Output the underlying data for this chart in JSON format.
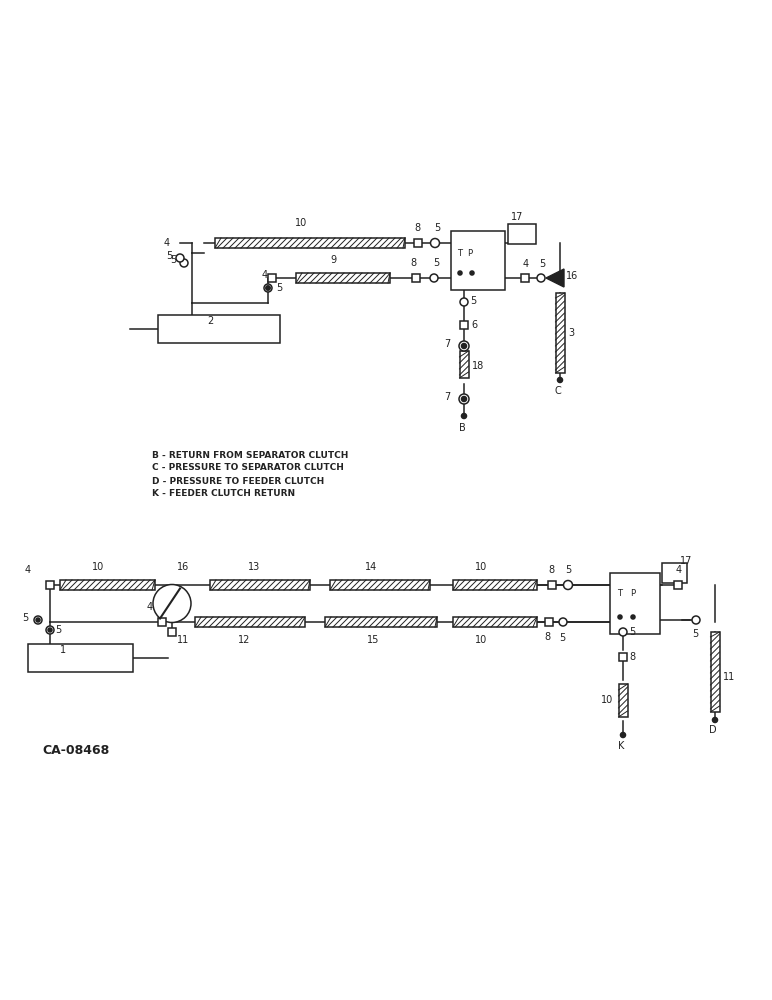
{
  "background": "#ffffff",
  "line_color": "#222222",
  "text_color": "#222222",
  "legend": [
    "B - RETURN FROM SEPARATOR CLUTCH",
    "C - PRESSURE TO SEPARATOR CLUTCH",
    "D - PRESSURE TO FEEDER CLUTCH",
    "K - FEEDER CLUTCH RETURN"
  ],
  "watermark": "CA-08468"
}
